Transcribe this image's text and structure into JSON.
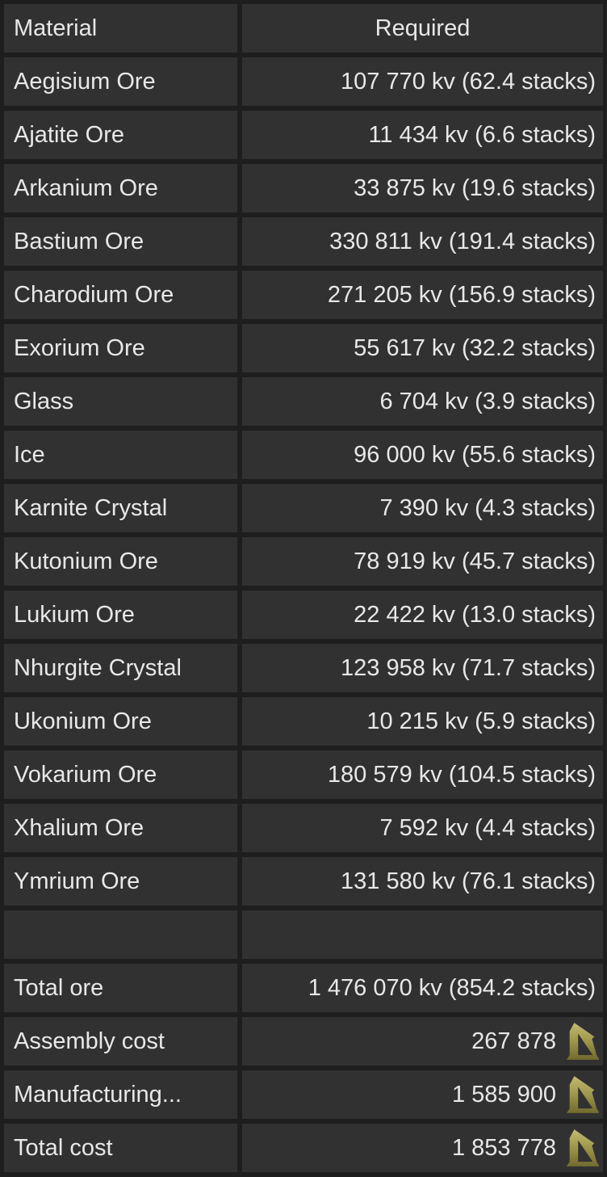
{
  "table": {
    "header": {
      "material": "Material",
      "required": "Required"
    },
    "materials": [
      {
        "name": "Aegisium Ore",
        "required": "107 770 kv (62.4 stacks)"
      },
      {
        "name": "Ajatite Ore",
        "required": "11 434 kv (6.6 stacks)"
      },
      {
        "name": "Arkanium Ore",
        "required": "33 875 kv (19.6 stacks)"
      },
      {
        "name": "Bastium Ore",
        "required": "330 811 kv (191.4 stacks)"
      },
      {
        "name": "Charodium Ore",
        "required": "271 205 kv (156.9 stacks)"
      },
      {
        "name": "Exorium Ore",
        "required": "55 617 kv (32.2 stacks)"
      },
      {
        "name": "Glass",
        "required": "6 704 kv (3.9 stacks)"
      },
      {
        "name": "Ice",
        "required": "96 000 kv (55.6 stacks)"
      },
      {
        "name": "Karnite Crystal",
        "required": "7 390 kv (4.3 stacks)"
      },
      {
        "name": "Kutonium Ore",
        "required": "78 919 kv (45.7 stacks)"
      },
      {
        "name": "Lukium Ore",
        "required": "22 422 kv (13.0 stacks)"
      },
      {
        "name": "Nhurgite Crystal",
        "required": "123 958 kv (71.7 stacks)"
      },
      {
        "name": "Ukonium Ore",
        "required": "10 215 kv (5.9 stacks)"
      },
      {
        "name": "Vokarium Ore",
        "required": "180 579 kv (104.5 stacks)"
      },
      {
        "name": "Xhalium Ore",
        "required": "7 592 kv (4.4 stacks)"
      },
      {
        "name": "Ymrium Ore",
        "required": "131 580 kv (76.1 stacks)"
      }
    ],
    "summary": [
      {
        "name": "Total ore",
        "value": "1 476 070 kv (854.2 stacks)",
        "currency_icon": false
      },
      {
        "name": "Assembly cost",
        "value": "267 878",
        "currency_icon": true
      },
      {
        "name": "Manufacturing...",
        "value": "1 585 900",
        "currency_icon": true
      },
      {
        "name": "Total cost",
        "value": "1 853 778",
        "currency_icon": true
      }
    ]
  },
  "icons": {
    "currency": "credits-icon"
  },
  "colors": {
    "cell_background": "#323132",
    "grid_gap": "#1e1e1f",
    "text": "#e9e8e9",
    "credits_gold_light": "#c3bb72",
    "credits_gold_mid": "#a29a4e",
    "credits_gold_dark": "#716a2e"
  }
}
